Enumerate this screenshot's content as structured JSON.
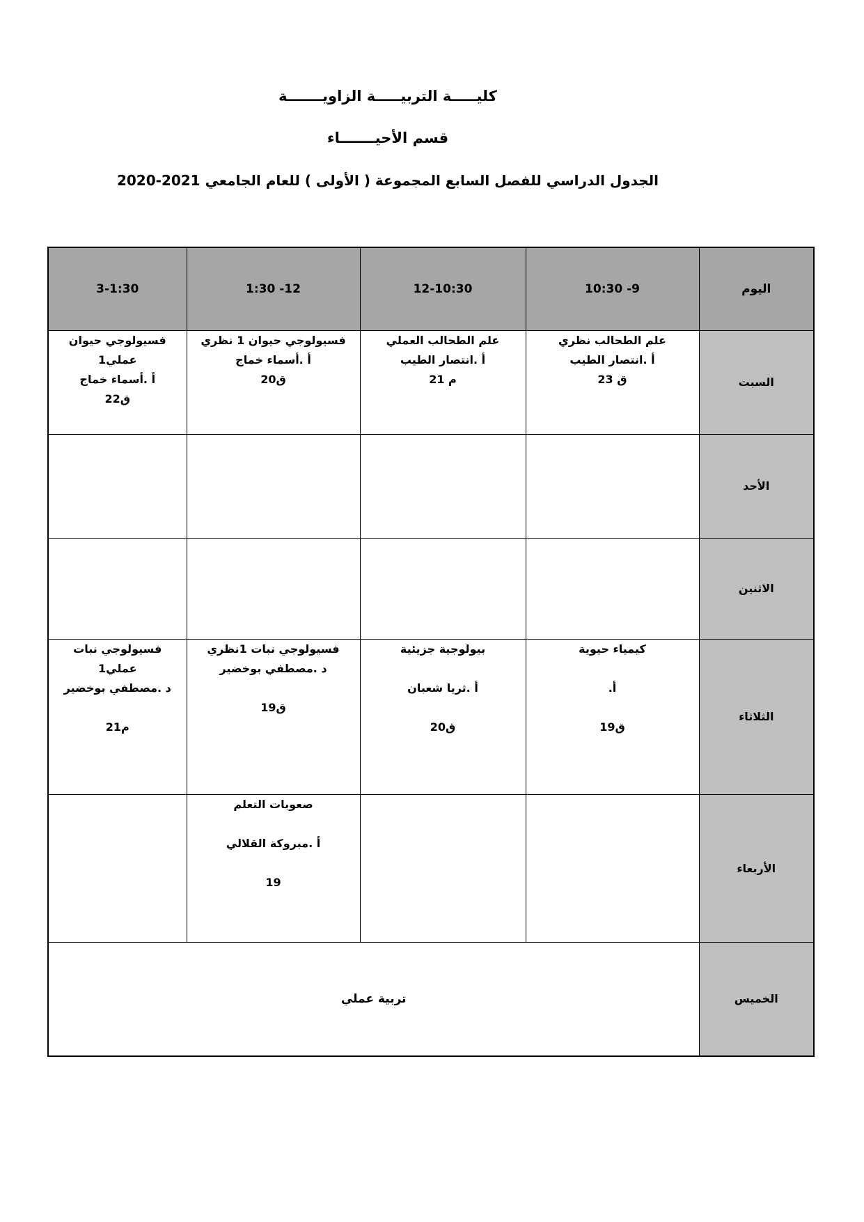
{
  "titles": {
    "college": "كليـــــة التربيـــــة الزاويـــــــة",
    "department": "قسم الأحيـــــــاء",
    "schedule_line": "الجدول الدراسي للفصل السابع المجموعة ( الأولى ) للعام الجامعي 2021-2020"
  },
  "table": {
    "day_column_header": "اليوم",
    "time_column_headers": [
      "10:30 -9",
      "12-10:30",
      "1:30 -12",
      "3-1:30"
    ],
    "rows": [
      {
        "day": "السبت",
        "cells": [
          {
            "lines": [
              "علم الطحالب نظري",
              "أ .انتصار الطيب",
              "ق 23"
            ]
          },
          {
            "lines": [
              "علم الطحالب العملي",
              "أ .انتصار الطيب",
              "م 21"
            ]
          },
          {
            "lines": [
              "فسيولوجي حيوان 1 نظري",
              "أ .أسماء خماج",
              "ق20"
            ]
          },
          {
            "lines": [
              "فسيولوجي حيوان",
              "عملي1",
              "أ .أسماء خماج",
              "ق22"
            ]
          }
        ]
      },
      {
        "day": "الأحد",
        "cells": [
          {
            "lines": []
          },
          {
            "lines": []
          },
          {
            "lines": []
          },
          {
            "lines": []
          }
        ]
      },
      {
        "day": "الاثنين",
        "cells": [
          {
            "lines": []
          },
          {
            "lines": []
          },
          {
            "lines": []
          },
          {
            "lines": []
          }
        ]
      },
      {
        "day": "الثلاثاء",
        "cells": [
          {
            "lines": [
              "كيمياء حيوية",
              "",
              "أ.",
              "",
              "ق19"
            ]
          },
          {
            "lines": [
              "بيولوجية جزيئية",
              "",
              "أ .ثريا شعبان",
              "",
              "ق20"
            ]
          },
          {
            "lines": [
              "فسيولوجي نبات  1نظري",
              "د .مصطفي بوخضير",
              "",
              "ق19"
            ]
          },
          {
            "lines": [
              "فسيولوجي نبات",
              "عملي1",
              "د .مصطفي بوخضير",
              "",
              "م21"
            ]
          }
        ]
      },
      {
        "day": "الأربعاء",
        "cells": [
          {
            "lines": []
          },
          {
            "lines": []
          },
          {
            "lines": [
              "صعوبات التعلم",
              "",
              "أ .مبروكة القلالي",
              "",
              "19"
            ]
          },
          {
            "lines": []
          }
        ]
      },
      {
        "day": "الخميس",
        "merged_cell": "تربية عملي"
      }
    ]
  },
  "colors": {
    "header_bg": "#a6a6a6",
    "day_cell_bg": "#bfbfbf",
    "border": "#000000",
    "text": "#000000",
    "page_bg": "#ffffff"
  }
}
